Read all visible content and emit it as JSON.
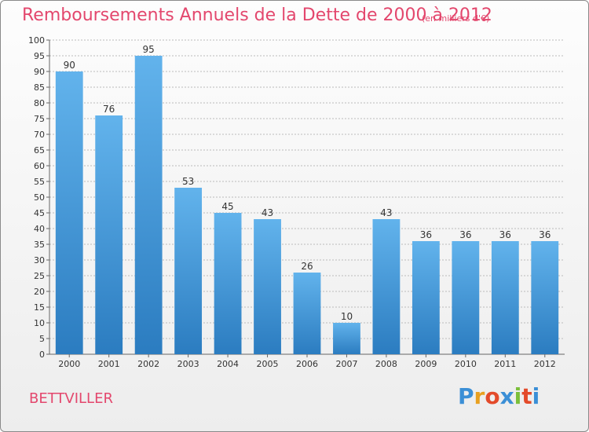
{
  "title": "Remboursements Annuels de la Dette de 2000 à 2012",
  "title_unit": "(en milliers d'€)",
  "city": "BETTVILLER",
  "logo": {
    "text": "Proxiti",
    "letter_colors": [
      "#3b8fd6",
      "#e8a020",
      "#e34a2a",
      "#3b8fd6",
      "#7bbf3a",
      "#e34a2a",
      "#3b8fd6"
    ]
  },
  "colors": {
    "title": "#e3476d",
    "bar_light": "#62b3ec",
    "bar_dark": "#2b7cc0",
    "grid": "#bbbbbb"
  },
  "chart_data": {
    "type": "bar",
    "title": "Remboursements Annuels de la Dette de 2000 à 2012",
    "ylabel": "",
    "xlabel": "",
    "ylim": [
      0,
      100
    ],
    "ytick_step": 5,
    "categories": [
      "2000",
      "2001",
      "2002",
      "2003",
      "2004",
      "2005",
      "2006",
      "2007",
      "2008",
      "2009",
      "2010",
      "2011",
      "2012"
    ],
    "values": [
      90,
      76,
      95,
      53,
      45,
      43,
      26,
      10,
      43,
      36,
      36,
      36,
      36
    ],
    "grid": true,
    "data_labels": true
  }
}
